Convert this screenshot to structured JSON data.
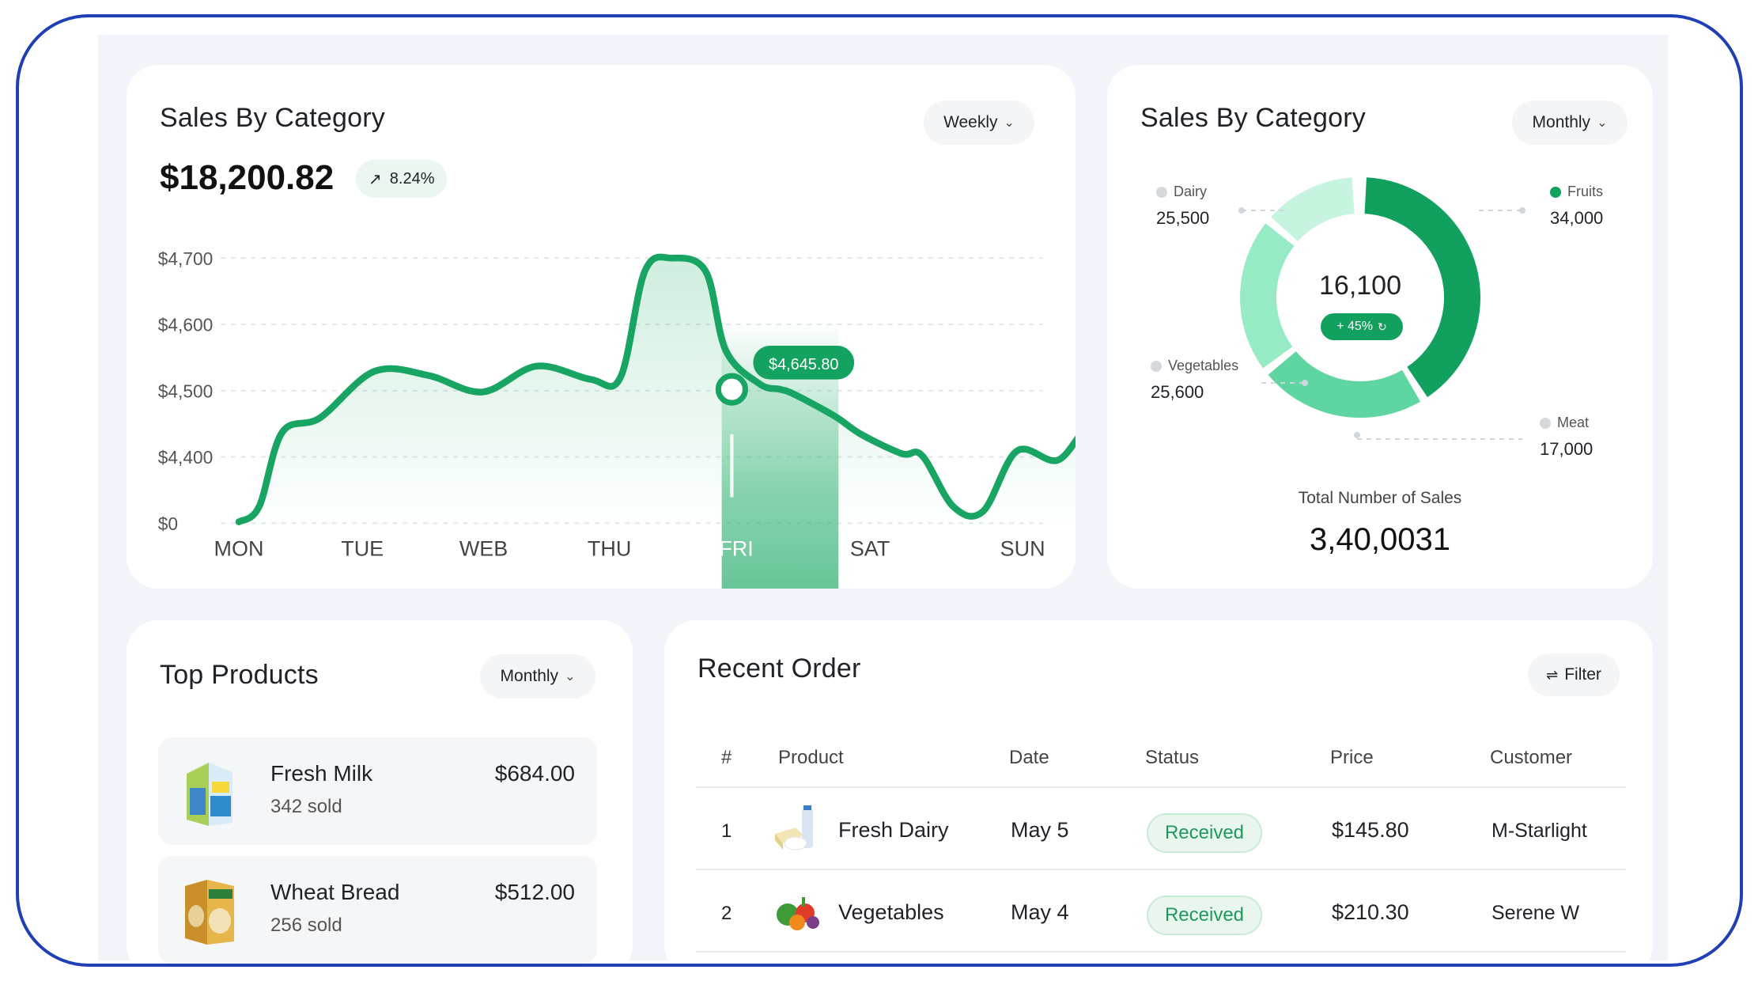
{
  "line_card": {
    "title": "Sales By Category",
    "period": "Weekly",
    "amount": "$18,200.82",
    "growth": "8.24%",
    "tooltip": "$4,645.80",
    "highlight_day": "FRI"
  },
  "chart_data": {
    "type": "line",
    "x": [
      "MON",
      "TUE",
      "WEB",
      "THU",
      "FRI",
      "SAT",
      "SUN"
    ],
    "y_tick_labels": [
      "$4,700",
      "$4,600",
      "$4,500",
      "$4,400",
      "$0"
    ],
    "series": [
      {
        "values_by_position": [
          [
            0.0,
            4302
          ],
          [
            0.15,
            4325
          ],
          [
            0.32,
            4437
          ],
          [
            0.6,
            4459
          ],
          [
            1.0,
            4529
          ],
          [
            1.4,
            4523
          ],
          [
            1.8,
            4498
          ],
          [
            2.2,
            4537
          ],
          [
            2.6,
            4517
          ],
          [
            2.82,
            4520
          ],
          [
            3.0,
            4680
          ],
          [
            3.2,
            4700
          ],
          [
            3.45,
            4680
          ],
          [
            3.6,
            4560
          ],
          [
            3.85,
            4510
          ],
          [
            4.0,
            4502
          ],
          [
            4.1,
            4495
          ],
          [
            4.4,
            4462
          ],
          [
            4.6,
            4434
          ],
          [
            4.9,
            4405
          ],
          [
            5.05,
            4402
          ],
          [
            5.28,
            4325
          ],
          [
            5.5,
            4318
          ],
          [
            5.75,
            4409
          ],
          [
            6.05,
            4395
          ],
          [
            6.3,
            4446
          ],
          [
            6.6,
            4420
          ]
        ]
      }
    ],
    "grid": true
  },
  "donut_card": {
    "title": "Sales By Category",
    "period": "Monthly",
    "center_value": "16,100",
    "center_badge": "+ 45%",
    "total_label": "Total Number of Sales",
    "total_value": "3,40,0031",
    "segments": [
      {
        "name": "Fruits",
        "value": "34,000",
        "color": "#12a05f"
      },
      {
        "name": "Meat",
        "value": "17,000",
        "color": "#5fd6a1"
      },
      {
        "name": "Vegetables",
        "value": "25,600",
        "color": "#97ebc4"
      },
      {
        "name": "Dairy",
        "value": "25,500",
        "color": "#c7f4de"
      }
    ]
  },
  "products_card": {
    "title": "Top Products",
    "period": "Monthly",
    "items": [
      {
        "name": "Fresh Milk",
        "sold": "342 sold",
        "price": "$684.00"
      },
      {
        "name": "Wheat Bread",
        "sold": "256 sold",
        "price": "$512.00"
      }
    ]
  },
  "orders_card": {
    "title": "Recent Order",
    "filter_label": "Filter",
    "columns": [
      "#",
      "Product",
      "Date",
      "Status",
      "Price",
      "Customer"
    ],
    "rows": [
      {
        "num": "1",
        "product": "Fresh Dairy",
        "date": "May 5",
        "status": "Received",
        "price": "$145.80",
        "customer": "M-Starlight"
      },
      {
        "num": "2",
        "product": "Vegetables",
        "date": "May 4",
        "status": "Received",
        "price": "$210.30",
        "customer": "Serene W"
      }
    ]
  },
  "colors": {
    "accent": "#14a05e",
    "frame": "#1f3fb5",
    "background": "#f1f5f9"
  }
}
